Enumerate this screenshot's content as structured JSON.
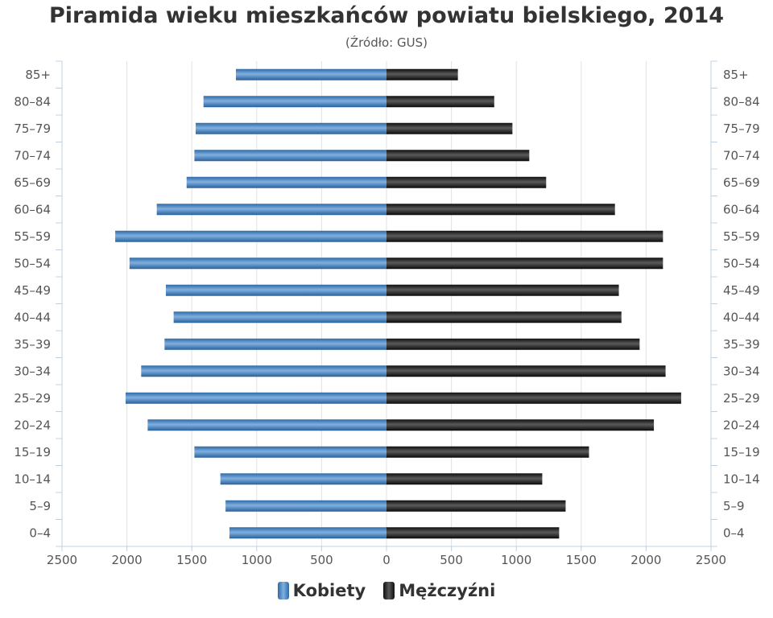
{
  "chart_data": {
    "type": "bar",
    "orientation": "horizontal",
    "title": "Piramida wieku mieszkańców powiatu bielskiego, 2014",
    "subtitle": "(Źródło: GUS)",
    "categories": [
      "85+",
      "80–84",
      "75–79",
      "70–74",
      "65–69",
      "60–64",
      "55–59",
      "50–54",
      "45–49",
      "40–44",
      "35–39",
      "30–34",
      "25–29",
      "20–24",
      "15–19",
      "10–14",
      "5–9",
      "0–4"
    ],
    "series": [
      {
        "name": "Kobiety",
        "color": "#4a86c5",
        "values": [
          1160,
          1410,
          1470,
          1480,
          1540,
          1770,
          2090,
          1980,
          1700,
          1640,
          1710,
          1890,
          2010,
          1840,
          1480,
          1280,
          1240,
          1210
        ]
      },
      {
        "name": "Mężczyźni",
        "color": "#1a1a1a",
        "values": [
          550,
          830,
          970,
          1100,
          1230,
          1760,
          2130,
          2130,
          1790,
          1810,
          1950,
          2150,
          2270,
          2060,
          1560,
          1200,
          1380,
          1330
        ]
      }
    ],
    "x_ticks": [
      "2500",
      "2000",
      "1500",
      "1000",
      "500",
      "0",
      "500",
      "1000",
      "1500",
      "2000",
      "2500"
    ],
    "xlim": [
      -2500,
      2500
    ],
    "grid": "vertical",
    "legend_position": "bottom-center"
  }
}
